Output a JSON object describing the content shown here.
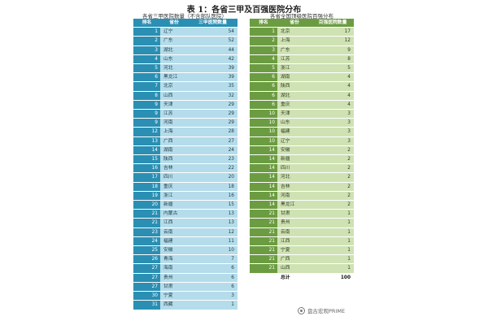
{
  "title": "表 1：各省三甲及百强医院分布",
  "left": {
    "subtitle": "各省三甲医院数量（不含部队医院）",
    "headers": [
      "排名",
      "省份",
      "三甲医院数量"
    ],
    "rows": [
      [
        "1",
        "辽宁",
        "54"
      ],
      [
        "2",
        "广东",
        "52"
      ],
      [
        "3",
        "湖北",
        "44"
      ],
      [
        "4",
        "山东",
        "42"
      ],
      [
        "5",
        "河北",
        "39"
      ],
      [
        "6",
        "黑龙江",
        "39"
      ],
      [
        "7",
        "北京",
        "35"
      ],
      [
        "8",
        "山西",
        "32"
      ],
      [
        "9",
        "天津",
        "29"
      ],
      [
        "9",
        "江苏",
        "29"
      ],
      [
        "9",
        "河南",
        "29"
      ],
      [
        "12",
        "上海",
        "28"
      ],
      [
        "13",
        "广西",
        "27"
      ],
      [
        "14",
        "湖南",
        "24"
      ],
      [
        "15",
        "陕西",
        "23"
      ],
      [
        "16",
        "吉林",
        "22"
      ],
      [
        "17",
        "四川",
        "20"
      ],
      [
        "18",
        "重庆",
        "18"
      ],
      [
        "19",
        "浙江",
        "16"
      ],
      [
        "20",
        "新疆",
        "15"
      ],
      [
        "21",
        "内蒙古",
        "13"
      ],
      [
        "21",
        "江西",
        "13"
      ],
      [
        "23",
        "云南",
        "12"
      ],
      [
        "24",
        "福建",
        "11"
      ],
      [
        "25",
        "安徽",
        "10"
      ],
      [
        "26",
        "青海",
        "7"
      ],
      [
        "27",
        "海南",
        "6"
      ],
      [
        "27",
        "贵州",
        "6"
      ],
      [
        "27",
        "甘肃",
        "6"
      ],
      [
        "30",
        "宁夏",
        "3"
      ],
      [
        "31",
        "西藏",
        "1"
      ]
    ]
  },
  "right": {
    "subtitle": "各省全国顶级医院百强分布",
    "headers": [
      "排名",
      "省份",
      "百强医院数量"
    ],
    "rows": [
      [
        "1",
        "北京",
        "17"
      ],
      [
        "2",
        "上海",
        "12"
      ],
      [
        "3",
        "广东",
        "9"
      ],
      [
        "4",
        "江苏",
        "8"
      ],
      [
        "5",
        "浙江",
        "5"
      ],
      [
        "6",
        "湖南",
        "4"
      ],
      [
        "6",
        "陕西",
        "4"
      ],
      [
        "6",
        "湖北",
        "4"
      ],
      [
        "6",
        "重庆",
        "4"
      ],
      [
        "10",
        "天津",
        "3"
      ],
      [
        "10",
        "山东",
        "3"
      ],
      [
        "10",
        "福建",
        "3"
      ],
      [
        "10",
        "辽宁",
        "3"
      ],
      [
        "14",
        "安徽",
        "2"
      ],
      [
        "14",
        "新疆",
        "2"
      ],
      [
        "14",
        "四川",
        "2"
      ],
      [
        "14",
        "河北",
        "2"
      ],
      [
        "14",
        "吉林",
        "2"
      ],
      [
        "14",
        "河南",
        "2"
      ],
      [
        "14",
        "黑龙江",
        "2"
      ],
      [
        "21",
        "甘肃",
        "1"
      ],
      [
        "21",
        "贵州",
        "1"
      ],
      [
        "21",
        "云南",
        "1"
      ],
      [
        "21",
        "江西",
        "1"
      ],
      [
        "21",
        "宁夏",
        "1"
      ],
      [
        "21",
        "广西",
        "1"
      ],
      [
        "21",
        "山西",
        "1"
      ]
    ],
    "total": [
      "",
      "总计",
      "100"
    ]
  },
  "watermark": "盘古宏观PRIME"
}
